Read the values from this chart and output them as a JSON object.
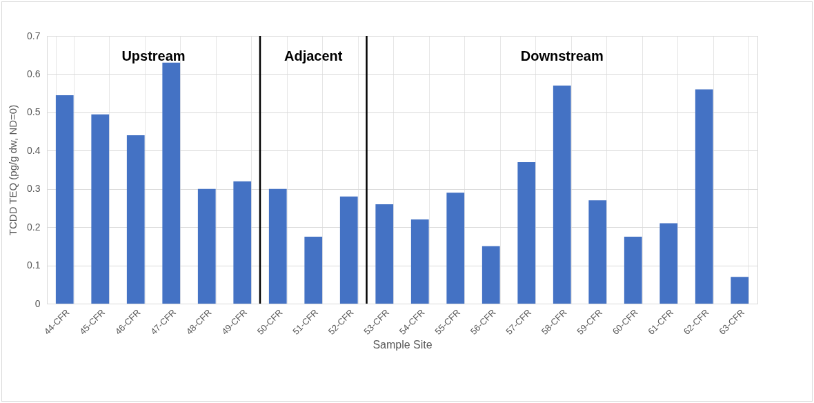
{
  "chart_data": {
    "type": "bar",
    "xlabel": "Sample Site",
    "ylabel": "TCDD TEQ (pg/g dw, ND=0)",
    "categories": [
      "44-CFR",
      "45-CFR",
      "46-CFR",
      "47-CFR",
      "48-CFR",
      "49-CFR",
      "50-CFR",
      "51-CFR",
      "52-CFR",
      "53-CFR",
      "54-CFR",
      "55-CFR",
      "56-CFR",
      "57-CFR",
      "58-CFR",
      "59-CFR",
      "60-CFR",
      "61-CFR",
      "62-CFR",
      "63-CFR"
    ],
    "values": [
      0.545,
      0.495,
      0.44,
      0.63,
      0.3,
      0.32,
      0.3,
      0.175,
      0.28,
      0.26,
      0.22,
      0.29,
      0.15,
      0.37,
      0.57,
      0.27,
      0.175,
      0.21,
      0.56,
      0.07
    ],
    "color": "#4472c4",
    "ylim": [
      0,
      0.7
    ],
    "yticks": [
      0,
      0.1,
      0.2,
      0.3,
      0.4,
      0.5,
      0.6,
      0.7
    ],
    "grid": true,
    "ref_lines": [
      {
        "axis": "x",
        "value": "50-CFR",
        "color": "#000000"
      },
      {
        "axis": "x",
        "value": "53-CFR",
        "color": "#000000"
      }
    ],
    "annotations": [
      "Upstream",
      "Adjacent",
      "Downstream"
    ]
  }
}
